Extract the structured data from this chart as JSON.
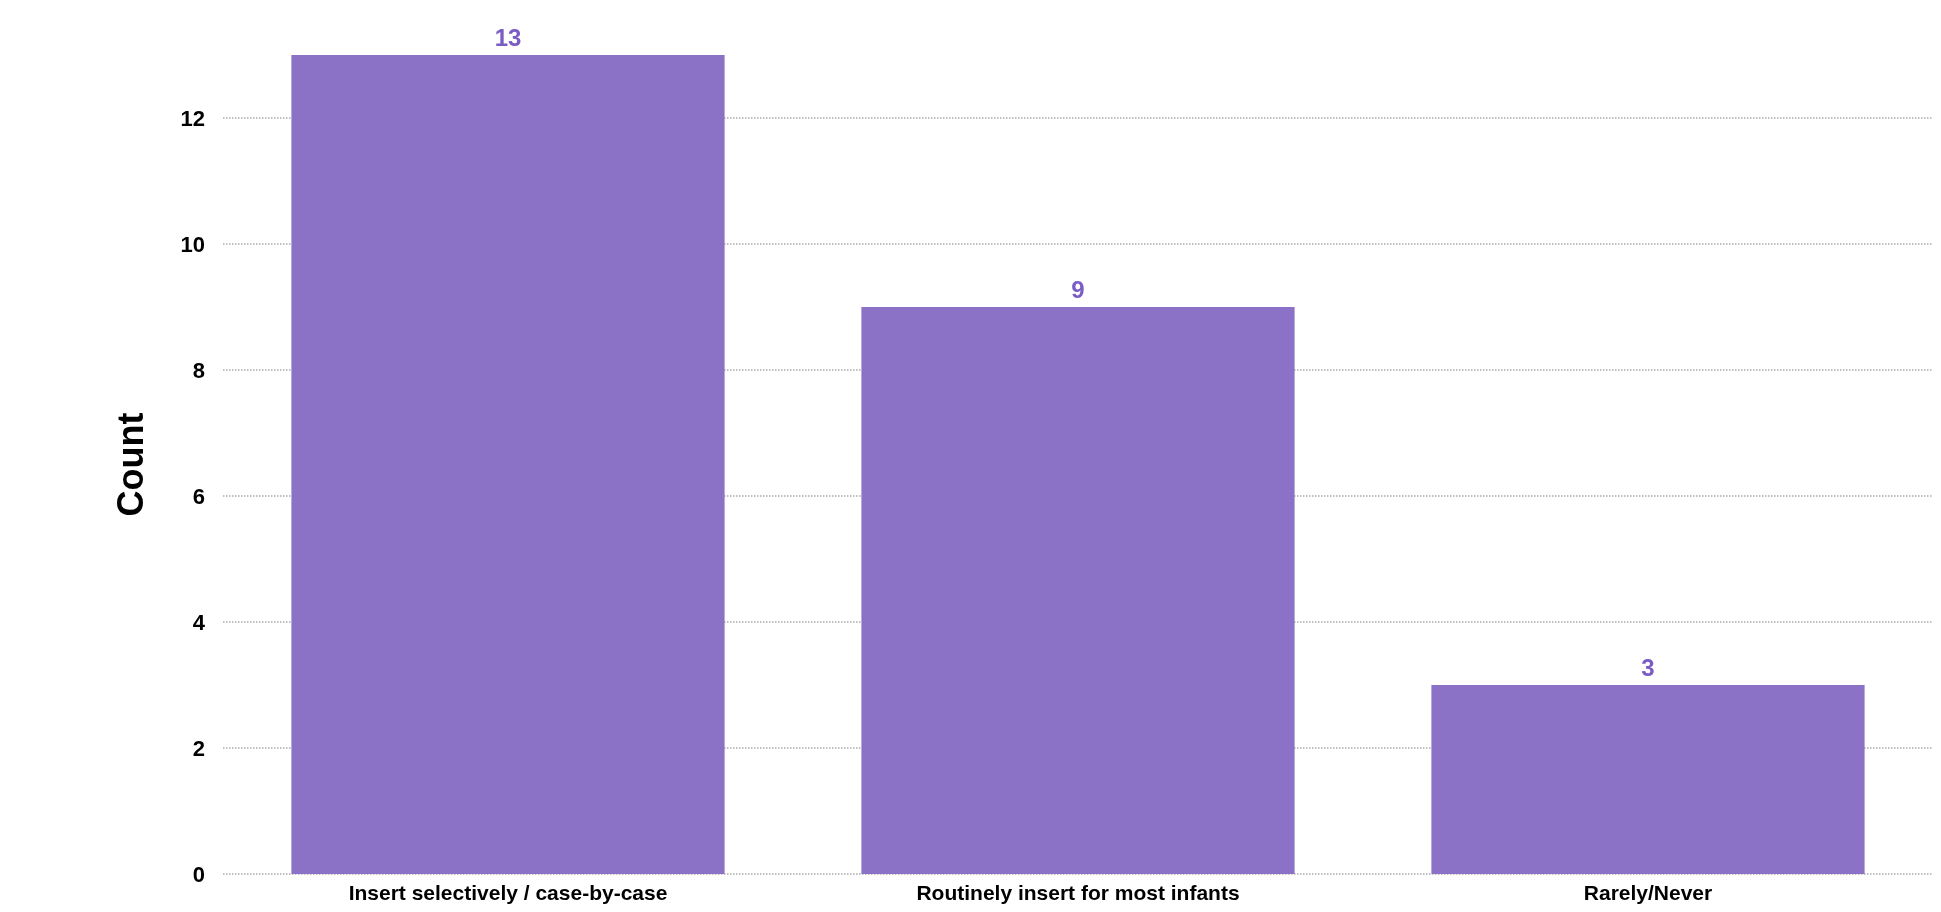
{
  "chart_data": {
    "type": "bar",
    "ylabel": "Count",
    "categories": [
      "Insert selectively / case-by-case",
      "Routinely insert for most infants",
      "Rarely/Never"
    ],
    "values": [
      13,
      9,
      3
    ],
    "color": "#8b72c7",
    "ylim": [
      0,
      13
    ],
    "yticks": [
      0,
      2,
      4,
      6,
      8,
      10,
      12
    ],
    "grid": "y",
    "data_labels": true
  }
}
